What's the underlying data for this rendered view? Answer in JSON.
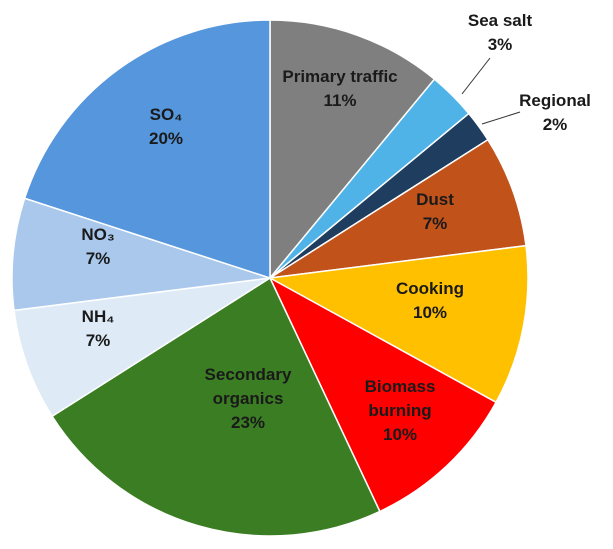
{
  "chart_data": {
    "type": "pie",
    "title": "",
    "slices": [
      {
        "name": "Primary traffic",
        "display": "Primary traffic",
        "value": 11,
        "value_label": "11%",
        "color": "#7f7f7f"
      },
      {
        "name": "Sea salt",
        "display": "Sea salt",
        "value": 3,
        "value_label": "3%",
        "color": "#4fb3e8"
      },
      {
        "name": "Regional",
        "display": "Regional",
        "value": 2,
        "value_label": "2%",
        "color": "#1f3d5e"
      },
      {
        "name": "Dust",
        "display": "Dust",
        "value": 7,
        "value_label": "7%",
        "color": "#c0521a"
      },
      {
        "name": "Cooking",
        "display": "Cooking",
        "value": 10,
        "value_label": "10%",
        "color": "#ffc000"
      },
      {
        "name": "Biomass burning",
        "display": "Biomass\nburning",
        "value": 10,
        "value_label": "10%",
        "color": "#ff0000"
      },
      {
        "name": "Secondary organics",
        "display": "Secondary\norganics",
        "value": 23,
        "value_label": "23%",
        "color": "#3a7d22"
      },
      {
        "name": "NH4",
        "display": "NH₄",
        "value": 7,
        "value_label": "7%",
        "color": "#deebf7"
      },
      {
        "name": "NO3",
        "display": "NO₃",
        "value": 7,
        "value_label": "7%",
        "color": "#a9c8ec"
      },
      {
        "name": "SO4",
        "display": "SO₄",
        "value": 20,
        "value_label": "20%",
        "color": "#5596dd"
      }
    ]
  }
}
